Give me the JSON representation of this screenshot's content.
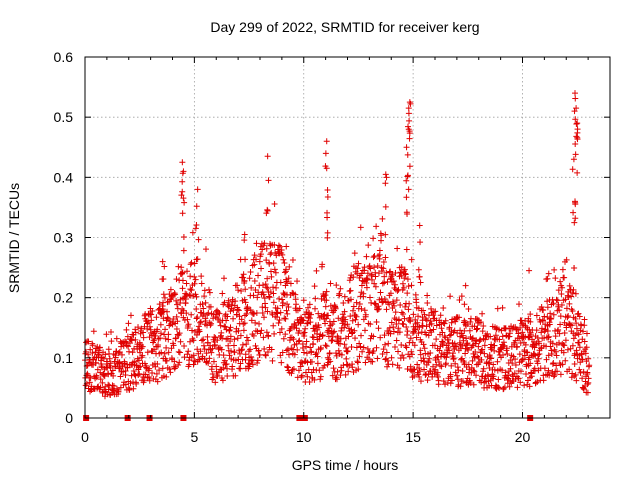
{
  "chart_data": {
    "type": "scatter",
    "title": "Day 299 of 2022, SRMTID for receiver kerg",
    "xlabel": "GPS time / hours",
    "ylabel": "SRMTID / TECUs",
    "xlim": [
      0,
      24
    ],
    "ylim": [
      0,
      0.6
    ],
    "x_ticks": [
      0,
      5,
      10,
      15,
      20
    ],
    "x_tick_labels": [
      "0",
      "5",
      "10",
      "15",
      "20"
    ],
    "y_ticks": [
      0,
      0.1,
      0.2,
      0.3,
      0.4,
      0.5,
      0.6
    ],
    "y_tick_labels": [
      "0",
      "0.1",
      "0.2",
      "0.3",
      "0.4",
      "0.5",
      "0.6"
    ],
    "grid": true,
    "marker": "+",
    "color": "#e00000",
    "series": [
      {
        "name": "SRMTID",
        "profile": [
          [
            0.0,
            0.085
          ],
          [
            0.5,
            0.08
          ],
          [
            1.0,
            0.075
          ],
          [
            1.5,
            0.08
          ],
          [
            2.0,
            0.09
          ],
          [
            2.5,
            0.11
          ],
          [
            3.0,
            0.12
          ],
          [
            3.5,
            0.13
          ],
          [
            4.0,
            0.15
          ],
          [
            4.5,
            0.17
          ],
          [
            5.0,
            0.17
          ],
          [
            5.5,
            0.15
          ],
          [
            6.0,
            0.12
          ],
          [
            6.5,
            0.13
          ],
          [
            7.0,
            0.15
          ],
          [
            7.5,
            0.17
          ],
          [
            8.0,
            0.19
          ],
          [
            8.5,
            0.2
          ],
          [
            9.0,
            0.19
          ],
          [
            9.5,
            0.14
          ],
          [
            10.0,
            0.12
          ],
          [
            10.5,
            0.13
          ],
          [
            11.0,
            0.14
          ],
          [
            11.5,
            0.13
          ],
          [
            12.0,
            0.15
          ],
          [
            12.5,
            0.17
          ],
          [
            13.0,
            0.18
          ],
          [
            13.5,
            0.18
          ],
          [
            14.0,
            0.16
          ],
          [
            14.5,
            0.17
          ],
          [
            15.0,
            0.14
          ],
          [
            15.5,
            0.12
          ],
          [
            16.0,
            0.12
          ],
          [
            16.5,
            0.11
          ],
          [
            17.0,
            0.11
          ],
          [
            17.5,
            0.11
          ],
          [
            18.0,
            0.11
          ],
          [
            18.5,
            0.1
          ],
          [
            19.0,
            0.1
          ],
          [
            19.5,
            0.1
          ],
          [
            20.0,
            0.11
          ],
          [
            20.5,
            0.11
          ],
          [
            21.0,
            0.13
          ],
          [
            21.5,
            0.14
          ],
          [
            22.0,
            0.16
          ],
          [
            22.5,
            0.12
          ],
          [
            23.0,
            0.08
          ]
        ],
        "peaks": [
          [
            4.45,
            0.425
          ],
          [
            4.5,
            0.41
          ],
          [
            5.15,
            0.38
          ],
          [
            8.35,
            0.435
          ],
          [
            11.05,
            0.46
          ],
          [
            11.05,
            0.415
          ],
          [
            13.75,
            0.405
          ],
          [
            14.85,
            0.525
          ],
          [
            14.8,
            0.515
          ],
          [
            14.8,
            0.48
          ],
          [
            14.7,
            0.45
          ],
          [
            22.4,
            0.54
          ],
          [
            22.45,
            0.515
          ],
          [
            22.5,
            0.49
          ],
          [
            22.35,
            0.43
          ],
          [
            22.4,
            0.36
          ],
          [
            3.55,
            0.26
          ],
          [
            7.3,
            0.305
          ],
          [
            9.2,
            0.285
          ],
          [
            15.3,
            0.32
          ],
          [
            17.4,
            0.22
          ],
          [
            20.3,
            0.245
          ],
          [
            21.2,
            0.24
          ]
        ]
      }
    ],
    "gap_markers_x": [
      0.05,
      1.95,
      2.95,
      4.5,
      9.8,
      10.05,
      20.35
    ]
  }
}
